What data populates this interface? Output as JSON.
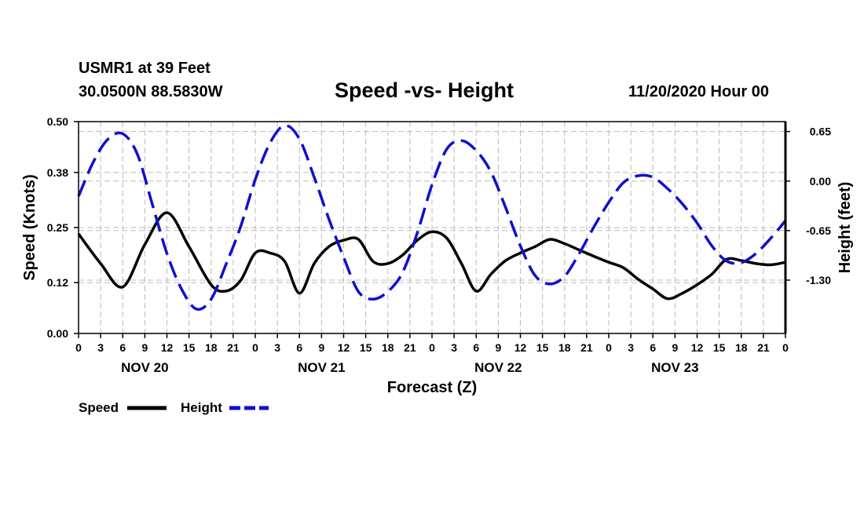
{
  "header": {
    "station": "USMR1 at 39 Feet",
    "coords": "30.0500N 88.5830W",
    "title": "Speed -vs- Height",
    "timestamp": "11/20/2020 Hour 00"
  },
  "colors": {
    "speed": "#000000",
    "height": "#1010cc",
    "grid": "#bbbbbb"
  },
  "chart_data": {
    "type": "line",
    "title": "Speed -vs- Height",
    "xlabel": "Forecast (Z)",
    "ylabel": "Speed (Knots)",
    "y2label": "Height (feet)",
    "xlim": [
      0,
      96
    ],
    "ylim": [
      0,
      0.5
    ],
    "y2lim": [
      -2.0,
      0.78
    ],
    "grid": true,
    "x_ticks": [
      0,
      3,
      6,
      9,
      12,
      15,
      18,
      21,
      24,
      27,
      30,
      33,
      36,
      39,
      42,
      45,
      48,
      51,
      54,
      57,
      60,
      63,
      66,
      69,
      72,
      75,
      78,
      81,
      84,
      87,
      90,
      93,
      96
    ],
    "x_tick_labels": [
      "0",
      "3",
      "6",
      "9",
      "12",
      "15",
      "18",
      "21",
      "0",
      "3",
      "6",
      "9",
      "12",
      "15",
      "18",
      "21",
      "0",
      "3",
      "6",
      "9",
      "12",
      "15",
      "18",
      "21",
      "0",
      "3",
      "6",
      "9",
      "12",
      "15",
      "18",
      "21",
      "0"
    ],
    "day_labels": [
      {
        "label": "NOV 20",
        "at": 9
      },
      {
        "label": "NOV 21",
        "at": 33
      },
      {
        "label": "NOV 22",
        "at": 57
      },
      {
        "label": "NOV 23",
        "at": 81
      }
    ],
    "y_ticks": [
      0.0,
      0.12,
      0.25,
      0.38,
      0.5
    ],
    "y_tick_labels": [
      "0.00",
      "0.12",
      "0.25",
      "0.38",
      "0.50"
    ],
    "y2_ticks": [
      0.65,
      0.0,
      -0.65,
      -1.3
    ],
    "y2_tick_labels": [
      "0.65",
      "0.00",
      "-0.65",
      "-1.30"
    ],
    "series": [
      {
        "name": "Speed",
        "axis": "left",
        "style": "solid",
        "x": [
          0,
          3,
          6,
          9,
          12,
          15,
          18,
          20,
          22,
          24,
          26,
          28,
          30,
          32,
          34,
          36,
          38,
          40,
          42,
          44,
          46,
          48,
          50,
          52,
          54,
          56,
          58,
          60,
          62,
          64,
          66,
          68,
          70,
          72,
          74,
          76,
          78,
          80,
          82,
          84,
          86,
          88,
          90,
          92,
          94,
          96
        ],
        "values": [
          0.235,
          0.165,
          0.11,
          0.21,
          0.285,
          0.205,
          0.115,
          0.1,
          0.125,
          0.19,
          0.19,
          0.17,
          0.095,
          0.165,
          0.205,
          0.22,
          0.222,
          0.17,
          0.165,
          0.185,
          0.22,
          0.24,
          0.225,
          0.165,
          0.1,
          0.14,
          0.172,
          0.19,
          0.205,
          0.222,
          0.212,
          0.197,
          0.182,
          0.168,
          0.155,
          0.128,
          0.105,
          0.082,
          0.095,
          0.115,
          0.14,
          0.175,
          0.172,
          0.165,
          0.162,
          0.168
        ]
      },
      {
        "name": "Height",
        "axis": "right",
        "style": "dashed",
        "x": [
          0,
          2,
          4,
          6,
          8,
          10,
          12,
          14,
          16,
          18,
          20,
          22,
          24,
          26,
          28,
          30,
          32,
          34,
          36,
          38,
          40,
          42,
          44,
          46,
          48,
          50,
          52,
          54,
          56,
          58,
          60,
          62,
          64,
          66,
          68,
          70,
          72,
          74,
          76,
          78,
          80,
          82,
          84,
          86,
          88,
          90,
          92,
          94,
          96
        ],
        "values": [
          -0.2,
          0.25,
          0.55,
          0.62,
          0.35,
          -0.3,
          -0.95,
          -1.42,
          -1.68,
          -1.55,
          -1.1,
          -0.6,
          0.02,
          0.5,
          0.73,
          0.55,
          0.05,
          -0.5,
          -1.0,
          -1.45,
          -1.55,
          -1.45,
          -1.2,
          -0.68,
          -0.05,
          0.42,
          0.53,
          0.4,
          0.12,
          -0.35,
          -0.85,
          -1.24,
          -1.35,
          -1.25,
          -0.95,
          -0.6,
          -0.28,
          -0.02,
          0.07,
          0.05,
          -0.1,
          -0.3,
          -0.55,
          -0.85,
          -1.05,
          -1.07,
          -0.95,
          -0.75,
          -0.52
        ]
      }
    ],
    "legend": [
      {
        "label": "Speed",
        "series": "Speed"
      },
      {
        "label": "Height",
        "series": "Height"
      }
    ]
  }
}
